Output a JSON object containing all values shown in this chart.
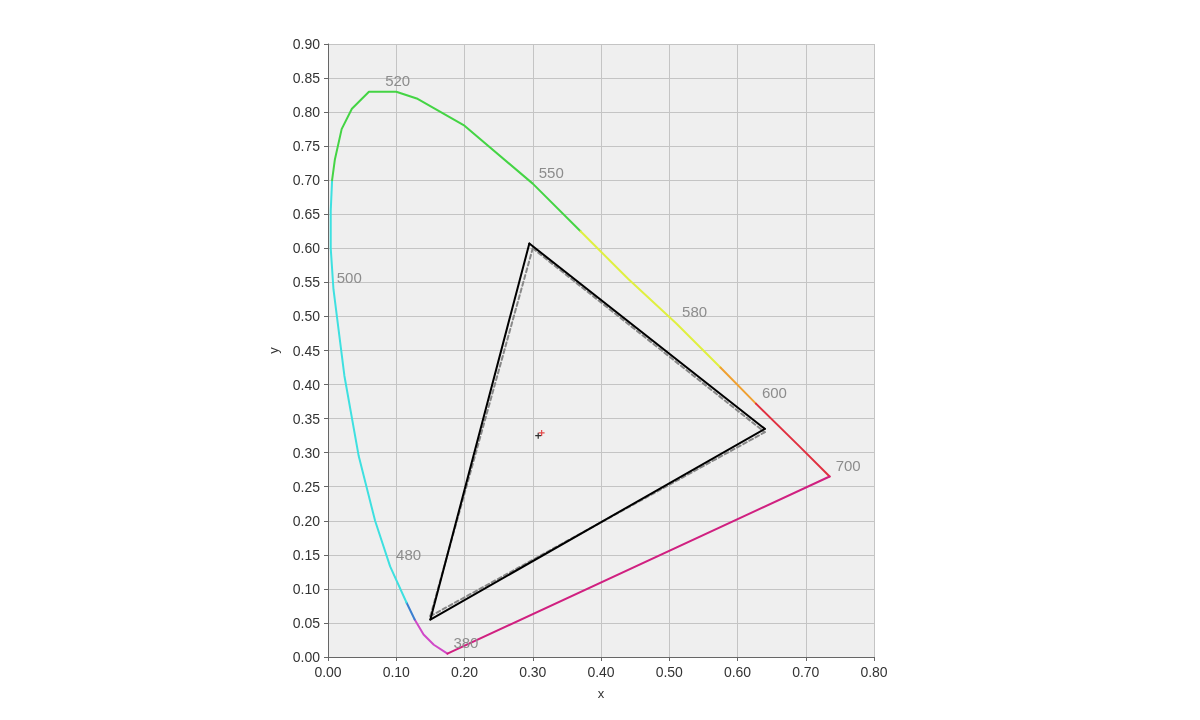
{
  "chart_data": {
    "type": "line",
    "xlabel": "x",
    "ylabel": "y",
    "xlim": [
      0,
      0.8
    ],
    "ylim": [
      0,
      0.9
    ],
    "xticks": [
      {
        "value": 0,
        "label": "0.00"
      },
      {
        "value": 0.1,
        "label": "0.10"
      },
      {
        "value": 0.2,
        "label": "0.20"
      },
      {
        "value": 0.3,
        "label": "0.30"
      },
      {
        "value": 0.4,
        "label": "0.40"
      },
      {
        "value": 0.5,
        "label": "0.50"
      },
      {
        "value": 0.6,
        "label": "0.60"
      },
      {
        "value": 0.7,
        "label": "0.70"
      },
      {
        "value": 0.8,
        "label": "0.80"
      }
    ],
    "yticks": [
      {
        "value": 0,
        "label": "0.00"
      },
      {
        "value": 0.05,
        "label": "0.05"
      },
      {
        "value": 0.1,
        "label": "0.10"
      },
      {
        "value": 0.15,
        "label": "0.15"
      },
      {
        "value": 0.2,
        "label": "0.20"
      },
      {
        "value": 0.25,
        "label": "0.25"
      },
      {
        "value": 0.3,
        "label": "0.30"
      },
      {
        "value": 0.35,
        "label": "0.35"
      },
      {
        "value": 0.4,
        "label": "0.40"
      },
      {
        "value": 0.45,
        "label": "0.45"
      },
      {
        "value": 0.5,
        "label": "0.50"
      },
      {
        "value": 0.55,
        "label": "0.55"
      },
      {
        "value": 0.6,
        "label": "0.60"
      },
      {
        "value": 0.65,
        "label": "0.65"
      },
      {
        "value": 0.7,
        "label": "0.70"
      },
      {
        "value": 0.75,
        "label": "0.75"
      },
      {
        "value": 0.8,
        "label": "0.80"
      },
      {
        "value": 0.85,
        "label": "0.85"
      },
      {
        "value": 0.9,
        "label": "0.90"
      }
    ],
    "grid": true,
    "marker": "none",
    "line_style": "solid",
    "series": [
      {
        "color": "#d048c8",
        "x": [
          0.127,
          0.14,
          0.155,
          0.175
        ],
        "values": [
          0.055,
          0.033,
          0.018,
          0.005
        ]
      },
      {
        "color": "#3a7fd0",
        "x": [
          0.115,
          0.127
        ],
        "values": [
          0.08,
          0.055
        ]
      },
      {
        "color": "#3ee0e0",
        "x": [
          0.115,
          0.091,
          0.069,
          0.045,
          0.024,
          0.008,
          0.004,
          0.004,
          0.006
        ],
        "values": [
          0.08,
          0.133,
          0.2,
          0.295,
          0.413,
          0.54,
          0.6,
          0.655,
          0.7
        ]
      },
      {
        "color": "#44d444",
        "x": [
          0.006,
          0.01,
          0.02,
          0.035,
          0.06,
          0.075,
          0.1,
          0.13,
          0.2,
          0.3,
          0.37
        ],
        "values": [
          0.7,
          0.73,
          0.775,
          0.805,
          0.83,
          0.83,
          0.83,
          0.82,
          0.78,
          0.695,
          0.625
        ]
      },
      {
        "color": "#e0f040",
        "x": [
          0.37,
          0.44,
          0.51,
          0.575
        ],
        "values": [
          0.625,
          0.555,
          0.49,
          0.425
        ]
      },
      {
        "color": "#f0a030",
        "x": [
          0.575,
          0.627
        ],
        "values": [
          0.425,
          0.372
        ]
      },
      {
        "color": "#e03040",
        "x": [
          0.627,
          0.69,
          0.735
        ],
        "values": [
          0.372,
          0.31,
          0.265
        ]
      },
      {
        "color": "#d02080",
        "x": [
          0.735,
          0.175
        ],
        "values": [
          0.265,
          0.005
        ]
      },
      {
        "color": "#888888",
        "line_style": "dashed",
        "x": [
          0.3,
          0.64
        ],
        "values": [
          0.6,
          0.33
        ]
      },
      {
        "color": "#888888",
        "line_style": "dashed",
        "x": [
          0.15,
          0.64
        ],
        "values": [
          0.06,
          0.33
        ]
      },
      {
        "color": "#888888",
        "line_style": "dashed",
        "x": [
          0.15,
          0.3
        ],
        "values": [
          0.06,
          0.6
        ]
      },
      {
        "color": "#000000",
        "x": [
          0.295,
          0.64
        ],
        "values": [
          0.607,
          0.335
        ]
      },
      {
        "color": "#000000",
        "x": [
          0.15,
          0.64
        ],
        "values": [
          0.055,
          0.335
        ]
      },
      {
        "color": "#000000",
        "x": [
          0.15,
          0.295
        ],
        "values": [
          0.055,
          0.607
        ]
      },
      {
        "type": "scatter",
        "color": "#000000",
        "marker": "cross",
        "x": [
          0.308
        ],
        "values": [
          0.325
        ]
      },
      {
        "type": "scatter",
        "color": "#e02020",
        "marker": "cross",
        "x": [
          0.313
        ],
        "values": [
          0.329
        ]
      }
    ],
    "annotations": [
      {
        "text": "520",
        "x": 0.075,
        "y": 0.83
      },
      {
        "text": "550",
        "x": 0.3,
        "y": 0.695
      },
      {
        "text": "580",
        "x": 0.51,
        "y": 0.49
      },
      {
        "text": "600",
        "x": 0.627,
        "y": 0.372
      },
      {
        "text": "700",
        "x": 0.735,
        "y": 0.265
      },
      {
        "text": "500",
        "x": 0.004,
        "y": 0.54
      },
      {
        "text": "480",
        "x": 0.091,
        "y": 0.133
      },
      {
        "text": "380",
        "x": 0.175,
        "y": 0.005
      }
    ]
  }
}
